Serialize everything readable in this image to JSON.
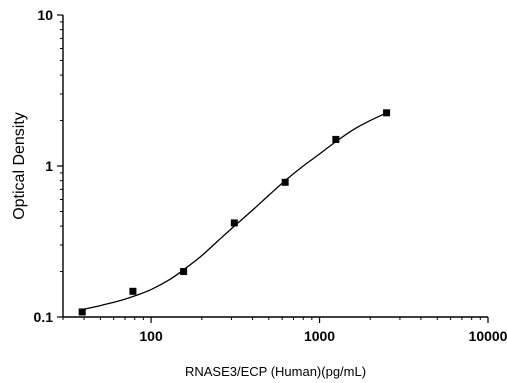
{
  "chart_data": {
    "type": "scatter",
    "title": "",
    "xlabel": "RNASE3/ECP (Human)(pg/mL)",
    "ylabel": "Optical Density",
    "x_scale": "log",
    "y_scale": "log",
    "xlim": [
      30,
      10000
    ],
    "ylim": [
      0.1,
      10
    ],
    "x_ticks": [
      100,
      1000,
      10000
    ],
    "x_tick_labels": [
      "100",
      "1000",
      "10000"
    ],
    "y_ticks": [
      0.1,
      1,
      10
    ],
    "y_tick_labels": [
      "0.1",
      "1",
      "10"
    ],
    "grid": false,
    "legend": "none",
    "series": [
      {
        "x": [
          39,
          78,
          156,
          312,
          625,
          1250,
          2500
        ],
        "y": [
          0.108,
          0.148,
          0.2,
          0.42,
          0.78,
          1.5,
          2.25
        ]
      }
    ],
    "fit_curve": {
      "x": [
        39,
        50,
        65,
        80,
        100,
        130,
        160,
        200,
        250,
        312,
        400,
        500,
        625,
        800,
        1000,
        1250,
        1600,
        2000,
        2500
      ],
      "y": [
        0.112,
        0.119,
        0.128,
        0.138,
        0.152,
        0.178,
        0.21,
        0.255,
        0.32,
        0.4,
        0.51,
        0.64,
        0.8,
        1.0,
        1.2,
        1.45,
        1.75,
        2.0,
        2.25
      ]
    },
    "colors": {
      "axis": "#000000",
      "points": "#000000",
      "curve": "#000000"
    }
  }
}
